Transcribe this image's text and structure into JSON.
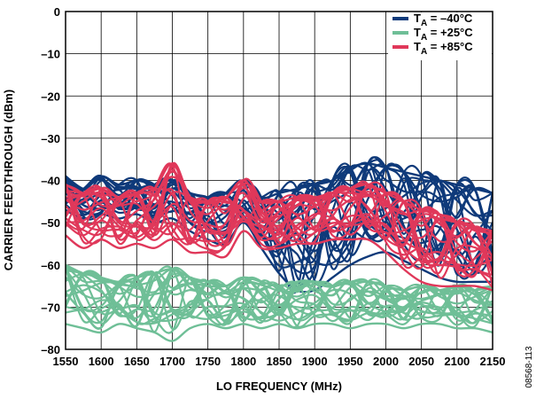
{
  "chart_data": {
    "type": "line",
    "xlabel": "LO FREQUENCY (MHz)",
    "ylabel": "CARRIER FEEDTHROUGH (dBm)",
    "xlim": [
      1550,
      2150
    ],
    "ylim": [
      -80,
      0
    ],
    "x_ticks": [
      1550,
      1600,
      1650,
      1700,
      1750,
      1800,
      1850,
      1900,
      1950,
      2000,
      2050,
      2100,
      2150
    ],
    "y_ticks": [
      0,
      -10,
      -20,
      -30,
      -40,
      -50,
      -60,
      -70,
      -80
    ],
    "y_tick_labels": [
      "0",
      "–10",
      "–20",
      "–30",
      "–40",
      "–50",
      "–60",
      "–70",
      "–80"
    ],
    "grid": true,
    "legend_position": "top-right",
    "figure_id": "08568-113",
    "series": [
      {
        "legend_main": "T",
        "legend_sub": "A",
        "legend_rest": " = –40°C",
        "color": "#0f3a7a",
        "x": [
          1550,
          1575,
          1600,
          1625,
          1650,
          1675,
          1700,
          1725,
          1750,
          1775,
          1800,
          1825,
          1850,
          1875,
          1900,
          1925,
          1950,
          1975,
          2000,
          2025,
          2050,
          2075,
          2100,
          2125,
          2150
        ],
        "upper": [
          -39,
          -42,
          -39,
          -41,
          -40,
          -41,
          -40,
          -43,
          -44,
          -43,
          -40,
          -44,
          -43,
          -42,
          -41,
          -40,
          -37,
          -36,
          -37,
          -38,
          -39,
          -40,
          -41,
          -42,
          -43
        ],
        "lower": [
          -47,
          -49,
          -48,
          -49,
          -48,
          -50,
          -49,
          -52,
          -54,
          -55,
          -50,
          -56,
          -62,
          -66,
          -66,
          -63,
          -60,
          -58,
          -57,
          -59,
          -61,
          -63,
          -64,
          -64,
          -64
        ]
      },
      {
        "legend_main": "T",
        "legend_sub": "A",
        "legend_rest": " = +25°C",
        "color": "#6fbf97",
        "x": [
          1550,
          1575,
          1600,
          1625,
          1650,
          1675,
          1700,
          1725,
          1750,
          1775,
          1800,
          1825,
          1850,
          1875,
          1900,
          1925,
          1950,
          1975,
          2000,
          2025,
          2050,
          2075,
          2100,
          2125,
          2150
        ],
        "upper": [
          -60,
          -62,
          -63,
          -64,
          -63,
          -62,
          -61,
          -63,
          -64,
          -65,
          -63,
          -64,
          -65,
          -64,
          -64,
          -65,
          -64,
          -64,
          -65,
          -66,
          -65,
          -66,
          -65,
          -66,
          -65
        ],
        "lower": [
          -74,
          -75,
          -76,
          -74,
          -75,
          -76,
          -78,
          -75,
          -74,
          -75,
          -74,
          -75,
          -74,
          -75,
          -74,
          -74,
          -75,
          -74,
          -74,
          -75,
          -74,
          -74,
          -75,
          -75,
          -76
        ]
      },
      {
        "legend_main": "T",
        "legend_sub": "A",
        "legend_rest": " = +85°C",
        "color": "#e0385a",
        "x": [
          1550,
          1575,
          1600,
          1625,
          1650,
          1675,
          1700,
          1725,
          1750,
          1775,
          1800,
          1825,
          1850,
          1875,
          1900,
          1925,
          1950,
          1975,
          2000,
          2025,
          2050,
          2075,
          2100,
          2125,
          2150
        ],
        "upper": [
          -41,
          -43,
          -42,
          -44,
          -43,
          -42,
          -36,
          -44,
          -45,
          -44,
          -40,
          -45,
          -45,
          -44,
          -44,
          -43,
          -42,
          -41,
          -43,
          -45,
          -47,
          -48,
          -50,
          -51,
          -52
        ],
        "lower": [
          -53,
          -56,
          -54,
          -56,
          -55,
          -56,
          -54,
          -57,
          -57,
          -58,
          -52,
          -56,
          -56,
          -55,
          -55,
          -54,
          -54,
          -54,
          -57,
          -61,
          -64,
          -65,
          -65,
          -65,
          -66
        ]
      }
    ]
  }
}
